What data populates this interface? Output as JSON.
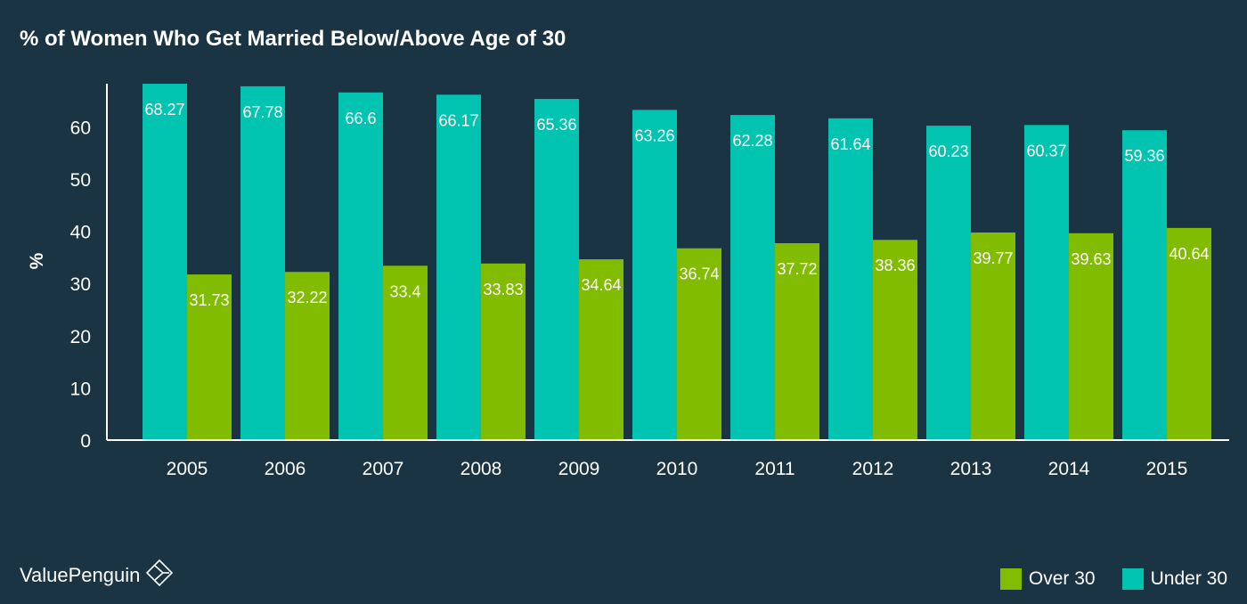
{
  "colors": {
    "background": "#1a3443",
    "under_30": "#00c3b0",
    "over_30": "#82bc00",
    "text": "#ffffff"
  },
  "brand": {
    "name": "ValuePenguin",
    "icon": "valuepenguin-logo-icon"
  },
  "chart_data": {
    "type": "bar",
    "title": "% of Women Who Get Married Below/Above Age of 30",
    "xlabel": "",
    "ylabel": "%",
    "ylim": [
      0,
      68.27
    ],
    "yticks": [
      0,
      10,
      20,
      30,
      40,
      50,
      60
    ],
    "grid": false,
    "legend_position": "bottom-right",
    "categories": [
      "2005",
      "2006",
      "2007",
      "2008",
      "2009",
      "2010",
      "2011",
      "2012",
      "2013",
      "2014",
      "2015"
    ],
    "series": [
      {
        "name": "Under 30",
        "color": "#00c3b0",
        "values": [
          68.27,
          67.78,
          66.6,
          66.17,
          65.36,
          63.26,
          62.28,
          61.64,
          60.23,
          60.37,
          59.36
        ],
        "labels": [
          "68.27",
          "67.78",
          "66.6",
          "66.17",
          "65.36",
          "63.26",
          "62.28",
          "61.64",
          "60.23",
          "60.37",
          "59.36"
        ]
      },
      {
        "name": "Over 30",
        "color": "#82bc00",
        "values": [
          31.73,
          32.22,
          33.4,
          33.83,
          34.64,
          36.74,
          37.72,
          38.36,
          39.77,
          39.63,
          40.64
        ],
        "labels": [
          "31.73",
          "32.22",
          "33.4",
          "33.83",
          "34.64",
          "36.74",
          "37.72",
          "38.36",
          "39.77",
          "39.63",
          "40.64"
        ]
      }
    ],
    "legend": [
      {
        "name": "Over 30",
        "color": "#82bc00"
      },
      {
        "name": "Under 30",
        "color": "#00c3b0"
      }
    ]
  }
}
